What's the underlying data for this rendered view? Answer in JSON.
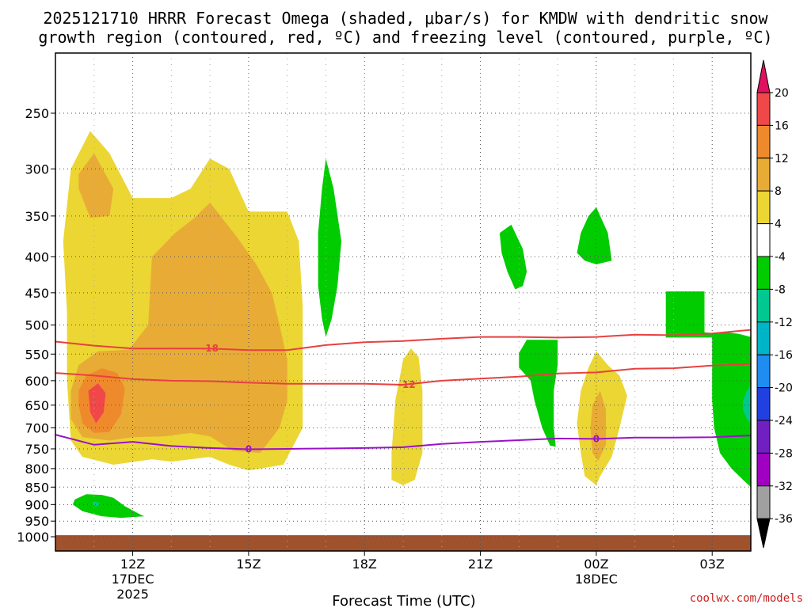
{
  "chart_data": {
    "type": "heatmap",
    "title_line1": "2025121710 HRRR Forecast Omega (shaded, μbar/s) for KMDW with dendritic snow",
    "title_line2": "growth region (contoured, red, ºC) and freezing level (contoured, purple, ºC)",
    "xlabel": "Forecast Time (UTC)",
    "ylabel": "",
    "watermark": "coolwx.com/models",
    "x_range_hours": [
      10,
      28
    ],
    "y_range_mb": [
      1000,
      250
    ],
    "x_ticks": [
      {
        "hour": 12,
        "label": "12Z",
        "sub1": "17DEC",
        "sub2": "2025"
      },
      {
        "hour": 15,
        "label": "15Z",
        "sub1": "",
        "sub2": ""
      },
      {
        "hour": 18,
        "label": "18Z",
        "sub1": "",
        "sub2": ""
      },
      {
        "hour": 21,
        "label": "21Z",
        "sub1": "",
        "sub2": ""
      },
      {
        "hour": 24,
        "label": "00Z",
        "sub1": "18DEC",
        "sub2": ""
      },
      {
        "hour": 27,
        "label": "03Z",
        "sub1": "",
        "sub2": ""
      }
    ],
    "y_ticks": [
      "250",
      "300",
      "350",
      "400",
      "450",
      "500",
      "550",
      "600",
      "650",
      "700",
      "750",
      "800",
      "850",
      "900",
      "950",
      "1000"
    ],
    "y_tick_values": [
      250,
      300,
      350,
      400,
      450,
      500,
      550,
      600,
      650,
      700,
      750,
      800,
      850,
      900,
      950,
      1000
    ],
    "colorbar": {
      "labels": [
        "20",
        "16",
        "12",
        "8",
        "4",
        "-4",
        "-8",
        "-12",
        "-16",
        "-20",
        "-24",
        "-28",
        "-32",
        "-36"
      ],
      "colors": [
        "#e0115f",
        "#f04848",
        "#ee8a2c",
        "#e8ac36",
        "#ebd634",
        "#ffffff",
        "#00cc00",
        "#00c890",
        "#00b4c8",
        "#1e8cf0",
        "#2040e0",
        "#7020c0",
        "#a000c0",
        "#a0a0a0",
        "#000000"
      ]
    },
    "omega_colors": {
      "yellow": "#ebd634",
      "gold": "#e8ac36",
      "orange": "#ee8a2c",
      "red": "#f04848",
      "green": "#00cc00",
      "teal": "#00c890",
      "ground": "#a0522d"
    },
    "contours": [
      {
        "name": "dgz-minus-18",
        "label": "-18",
        "color": "#e84040",
        "points": [
          [
            10,
            528
          ],
          [
            11,
            535
          ],
          [
            12,
            540
          ],
          [
            13,
            540
          ],
          [
            14,
            540
          ],
          [
            15,
            543
          ],
          [
            16,
            543
          ],
          [
            17,
            534
          ],
          [
            18,
            529
          ],
          [
            19,
            527
          ],
          [
            20,
            523
          ],
          [
            21,
            520
          ],
          [
            22,
            520
          ],
          [
            23,
            521
          ],
          [
            24,
            520
          ],
          [
            25,
            516
          ],
          [
            26,
            517
          ],
          [
            27,
            514
          ],
          [
            28,
            508
          ]
        ],
        "label_hour": 14.0,
        "label_pressure": 540
      },
      {
        "name": "dgz-minus-12",
        "label": "-12",
        "color": "#e84040",
        "points": [
          [
            10,
            585
          ],
          [
            11,
            590
          ],
          [
            12,
            597
          ],
          [
            13,
            600
          ],
          [
            14,
            601
          ],
          [
            15,
            604
          ],
          [
            16,
            606
          ],
          [
            17,
            606
          ],
          [
            18,
            606
          ],
          [
            19,
            608
          ],
          [
            20,
            600
          ],
          [
            21,
            596
          ],
          [
            22,
            592
          ],
          [
            23,
            586
          ],
          [
            24,
            584
          ],
          [
            25,
            577
          ],
          [
            26,
            576
          ],
          [
            27,
            571
          ],
          [
            28,
            568
          ]
        ],
        "label_hour": 19.1,
        "label_pressure": 608
      },
      {
        "name": "freezing-level-0",
        "label": "0",
        "color": "#9a12c8",
        "points": [
          [
            10,
            716
          ],
          [
            11,
            740
          ],
          [
            12,
            733
          ],
          [
            13,
            743
          ],
          [
            14,
            748
          ],
          [
            15,
            751
          ],
          [
            16,
            750
          ],
          [
            17,
            749
          ],
          [
            18,
            748
          ],
          [
            19,
            746
          ],
          [
            20,
            738
          ],
          [
            21,
            733
          ],
          [
            22,
            729
          ],
          [
            23,
            725
          ],
          [
            24,
            726
          ],
          [
            25,
            723
          ],
          [
            26,
            723
          ],
          [
            27,
            722
          ],
          [
            28,
            718
          ]
        ],
        "label_hour": 15.0,
        "label_pressure": 751
      },
      {
        "name": "freezing-level-0-b",
        "label": "0",
        "color": "#9a12c8",
        "points": [],
        "label_hour": 24.0,
        "label_pressure": 726
      }
    ],
    "regions": [
      {
        "name": "omega-region-yellow-main",
        "fill": "yellow",
        "points": [
          [
            10.4,
            300
          ],
          [
            10.9,
            265
          ],
          [
            11.4,
            285
          ],
          [
            12.0,
            330
          ],
          [
            13.0,
            330
          ],
          [
            13.5,
            320
          ],
          [
            14.0,
            290
          ],
          [
            14.5,
            300
          ],
          [
            15.0,
            345
          ],
          [
            16.0,
            345
          ],
          [
            16.3,
            380
          ],
          [
            16.4,
            470
          ],
          [
            16.4,
            550
          ],
          [
            16.4,
            700
          ],
          [
            15.9,
            790
          ],
          [
            15.0,
            805
          ],
          [
            14.5,
            790
          ],
          [
            14.0,
            770
          ],
          [
            13.0,
            782
          ],
          [
            12.5,
            776
          ],
          [
            11.5,
            790
          ],
          [
            10.7,
            770
          ],
          [
            10.4,
            730
          ],
          [
            10.3,
            600
          ],
          [
            10.3,
            480
          ],
          [
            10.2,
            380
          ]
        ]
      },
      {
        "name": "omega-region-gold-upper",
        "fill": "gold",
        "points": [
          [
            10.6,
            305
          ],
          [
            11.0,
            285
          ],
          [
            11.5,
            320
          ],
          [
            11.4,
            350
          ],
          [
            10.9,
            352
          ],
          [
            10.6,
            320
          ]
        ]
      },
      {
        "name": "omega-region-gold-main",
        "fill": "gold",
        "points": [
          [
            12.5,
            400
          ],
          [
            13.1,
            370
          ],
          [
            13.6,
            352
          ],
          [
            14.0,
            335
          ],
          [
            14.7,
            375
          ],
          [
            15.2,
            410
          ],
          [
            15.6,
            450
          ],
          [
            15.8,
            500
          ],
          [
            16.0,
            560
          ],
          [
            16.0,
            640
          ],
          [
            15.8,
            700
          ],
          [
            15.3,
            760
          ],
          [
            14.6,
            755
          ],
          [
            14.0,
            720
          ],
          [
            13.5,
            712
          ],
          [
            12.8,
            720
          ],
          [
            12.0,
            722
          ],
          [
            11.4,
            730
          ],
          [
            10.7,
            722
          ],
          [
            10.4,
            680
          ],
          [
            10.4,
            620
          ],
          [
            10.6,
            570
          ],
          [
            11.1,
            545
          ],
          [
            11.9,
            542
          ],
          [
            12.4,
            500
          ]
        ]
      },
      {
        "name": "omega-region-orange",
        "fill": "orange",
        "points": [
          [
            10.6,
            620
          ],
          [
            10.8,
            590
          ],
          [
            11.2,
            576
          ],
          [
            11.6,
            585
          ],
          [
            11.8,
            615
          ],
          [
            11.7,
            670
          ],
          [
            11.4,
            710
          ],
          [
            11.0,
            712
          ],
          [
            10.7,
            690
          ],
          [
            10.6,
            650
          ]
        ]
      },
      {
        "name": "omega-region-red",
        "fill": "red",
        "points": [
          [
            10.85,
            620
          ],
          [
            11.1,
            605
          ],
          [
            11.3,
            625
          ],
          [
            11.25,
            665
          ],
          [
            11.05,
            690
          ],
          [
            10.9,
            665
          ]
        ]
      },
      {
        "name": "omega-region-yellow-18z",
        "fill": "yellow",
        "points": [
          [
            19.0,
            560
          ],
          [
            19.2,
            540
          ],
          [
            19.4,
            555
          ],
          [
            19.5,
            620
          ],
          [
            19.5,
            760
          ],
          [
            19.3,
            830
          ],
          [
            19.0,
            845
          ],
          [
            18.7,
            830
          ],
          [
            18.7,
            760
          ],
          [
            18.8,
            640
          ]
        ]
      },
      {
        "name": "omega-region-yellow-00z",
        "fill": "yellow",
        "points": [
          [
            23.6,
            620
          ],
          [
            23.8,
            575
          ],
          [
            24.0,
            545
          ],
          [
            24.3,
            570
          ],
          [
            24.6,
            590
          ],
          [
            24.8,
            630
          ],
          [
            24.6,
            700
          ],
          [
            24.4,
            770
          ],
          [
            24.1,
            820
          ],
          [
            24.0,
            845
          ],
          [
            23.7,
            820
          ],
          [
            23.6,
            760
          ],
          [
            23.5,
            690
          ]
        ]
      },
      {
        "name": "omega-region-gold-00z",
        "fill": "gold",
        "points": [
          [
            23.9,
            650
          ],
          [
            24.1,
            620
          ],
          [
            24.25,
            660
          ],
          [
            24.25,
            740
          ],
          [
            24.05,
            780
          ],
          [
            23.9,
            760
          ],
          [
            23.85,
            700
          ]
        ]
      },
      {
        "name": "omega-region-green-17z",
        "fill": "green",
        "points": [
          [
            17.0,
            290
          ],
          [
            17.2,
            320
          ],
          [
            17.4,
            380
          ],
          [
            17.3,
            440
          ],
          [
            17.15,
            490
          ],
          [
            17.0,
            520
          ],
          [
            16.9,
            490
          ],
          [
            16.8,
            440
          ],
          [
            16.8,
            370
          ],
          [
            16.9,
            320
          ]
        ]
      },
      {
        "name": "omega-region-green-22z",
        "fill": "green",
        "points": [
          [
            21.5,
            370
          ],
          [
            21.8,
            360
          ],
          [
            22.1,
            390
          ],
          [
            22.2,
            420
          ],
          [
            22.1,
            440
          ],
          [
            21.9,
            445
          ],
          [
            21.7,
            420
          ],
          [
            21.55,
            395
          ]
        ]
      },
      {
        "name": "omega-region-green-24z",
        "fill": "green",
        "points": [
          [
            23.6,
            370
          ],
          [
            23.8,
            350
          ],
          [
            24.0,
            340
          ],
          [
            24.3,
            370
          ],
          [
            24.4,
            405
          ],
          [
            24.0,
            410
          ],
          [
            23.7,
            405
          ],
          [
            23.5,
            395
          ]
        ]
      },
      {
        "name": "omega-region-green-23z",
        "fill": "green",
        "points": [
          [
            22.0,
            548
          ],
          [
            22.2,
            525
          ],
          [
            23.0,
            525
          ],
          [
            23.0,
            570
          ],
          [
            22.9,
            620
          ],
          [
            22.9,
            700
          ],
          [
            22.95,
            745
          ],
          [
            22.8,
            742
          ],
          [
            22.6,
            700
          ],
          [
            22.4,
            640
          ],
          [
            22.3,
            600
          ],
          [
            22.0,
            575
          ]
        ]
      },
      {
        "name": "omega-region-green-03z-top",
        "fill": "green",
        "points": [
          [
            25.8,
            448
          ],
          [
            26.8,
            448
          ],
          [
            26.8,
            512
          ],
          [
            27.1,
            514
          ],
          [
            27.1,
            521
          ],
          [
            25.8,
            521
          ]
        ]
      },
      {
        "name": "omega-region-green-03z",
        "fill": "green",
        "points": [
          [
            27.0,
            515
          ],
          [
            27.4,
            512
          ],
          [
            27.7,
            515
          ],
          [
            28.0,
            520
          ],
          [
            28.0,
            850
          ],
          [
            27.8,
            830
          ],
          [
            27.5,
            800
          ],
          [
            27.2,
            760
          ],
          [
            27.05,
            700
          ],
          [
            27.0,
            640
          ],
          [
            27.0,
            560
          ]
        ]
      },
      {
        "name": "omega-region-teal-03z",
        "fill": "teal",
        "points": [
          [
            27.8,
            640
          ],
          [
            27.9,
            620
          ],
          [
            28.0,
            610
          ],
          [
            28.0,
            690
          ],
          [
            27.9,
            680
          ],
          [
            27.8,
            660
          ]
        ]
      },
      {
        "name": "omega-region-green-low",
        "fill": "green",
        "points": [
          [
            10.5,
            885
          ],
          [
            10.8,
            870
          ],
          [
            11.2,
            872
          ],
          [
            11.5,
            880
          ],
          [
            11.8,
            905
          ],
          [
            12.2,
            930
          ],
          [
            12.3,
            935
          ],
          [
            11.7,
            940
          ],
          [
            11.2,
            935
          ],
          [
            10.7,
            920
          ],
          [
            10.45,
            900
          ]
        ]
      },
      {
        "name": "omega-region-teal-low",
        "fill": "teal",
        "points": [
          [
            10.95,
            898
          ],
          [
            11.05,
            890
          ],
          [
            11.15,
            898
          ],
          [
            11.05,
            906
          ]
        ]
      }
    ]
  }
}
